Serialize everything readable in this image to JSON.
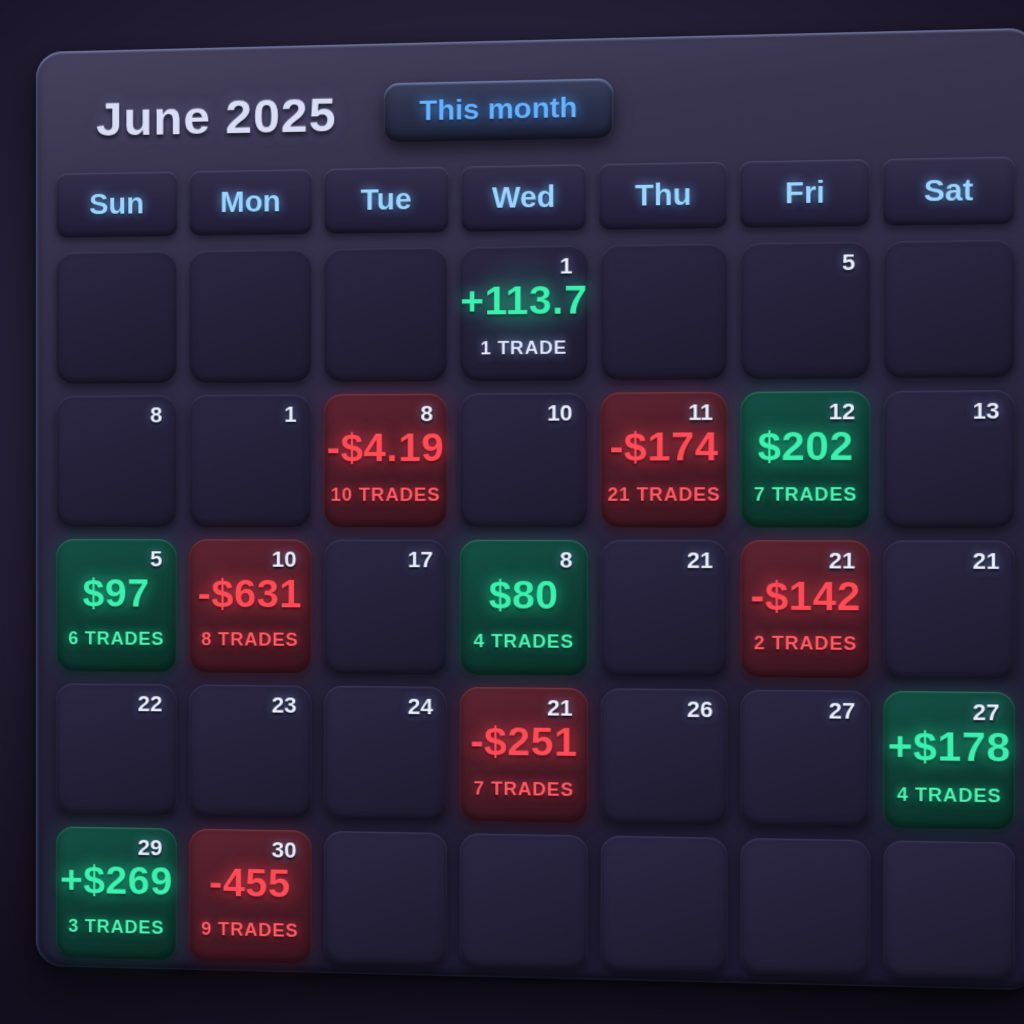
{
  "header": {
    "title": "June 2025",
    "this_month_button": "This month"
  },
  "weekdays": [
    "Sun",
    "Mon",
    "Tue",
    "Wed",
    "Thu",
    "Fri",
    "Sat"
  ],
  "colors": {
    "positive": "#3CF0AF",
    "negative": "#FF4B55",
    "weekday_text": "#9BD4FF",
    "button_text": "#66B2FF",
    "title_text": "#D8DCF6",
    "day_number_text": "#EAEEFF",
    "positive_cell_bg": "#0F3D34",
    "negative_cell_bg": "#4A1C27",
    "cell_bg": "#242038",
    "panel_bg": "#2B2740"
  },
  "weeks": [
    [
      {
        "day": "",
        "value": "",
        "trades": "",
        "tone": ""
      },
      {
        "day": "",
        "value": "",
        "trades": "",
        "tone": ""
      },
      {
        "day": "",
        "value": "",
        "trades": "",
        "tone": ""
      },
      {
        "day": "1",
        "value": "+113.7",
        "trades": "1 TRADE",
        "tone": "positive",
        "soft_bg": true,
        "neutral_trades": true
      },
      {
        "day": "",
        "value": "",
        "trades": "",
        "tone": ""
      },
      {
        "day": "5",
        "value": "",
        "trades": "",
        "tone": ""
      },
      {
        "day": "",
        "value": "",
        "trades": "",
        "tone": ""
      }
    ],
    [
      {
        "day": "8",
        "value": "",
        "trades": "",
        "tone": ""
      },
      {
        "day": "1",
        "value": "",
        "trades": "",
        "tone": ""
      },
      {
        "day": "8",
        "value": "-$4.19",
        "trades": "10 TRADES",
        "tone": "negative"
      },
      {
        "day": "10",
        "value": "",
        "trades": "",
        "tone": ""
      },
      {
        "day": "11",
        "value": "-$174",
        "trades": "21 TRADES",
        "tone": "negative"
      },
      {
        "day": "12",
        "value": "$202",
        "trades": "7 TRADES",
        "tone": "positive"
      },
      {
        "day": "13",
        "value": "",
        "trades": "",
        "tone": ""
      }
    ],
    [
      {
        "day": "5",
        "value": "$97",
        "trades": "6 TRADES",
        "tone": "positive"
      },
      {
        "day": "10",
        "value": "-$631",
        "trades": "8 TRADES",
        "tone": "negative"
      },
      {
        "day": "17",
        "value": "",
        "trades": "",
        "tone": ""
      },
      {
        "day": "8",
        "value": "$80",
        "trades": "4 TRADES",
        "tone": "positive"
      },
      {
        "day": "21",
        "value": "",
        "trades": "",
        "tone": ""
      },
      {
        "day": "21",
        "value": "-$142",
        "trades": "2 TRADES",
        "tone": "negative"
      },
      {
        "day": "21",
        "value": "",
        "trades": "",
        "tone": ""
      }
    ],
    [
      {
        "day": "22",
        "value": "",
        "trades": "",
        "tone": ""
      },
      {
        "day": "23",
        "value": "",
        "trades": "",
        "tone": ""
      },
      {
        "day": "24",
        "value": "",
        "trades": "",
        "tone": ""
      },
      {
        "day": "21",
        "value": "-$251",
        "trades": "7 TRADES",
        "tone": "negative"
      },
      {
        "day": "26",
        "value": "",
        "trades": "",
        "tone": ""
      },
      {
        "day": "27",
        "value": "",
        "trades": "",
        "tone": ""
      },
      {
        "day": "27",
        "value": "+$178",
        "trades": "4 TRADES",
        "tone": "positive"
      }
    ],
    [
      {
        "day": "29",
        "value": "+$269",
        "trades": "3 TRADES",
        "tone": "positive"
      },
      {
        "day": "30",
        "value": "-455",
        "trades": "9 TRADES",
        "tone": "negative"
      },
      {
        "day": "",
        "value": "",
        "trades": "",
        "tone": ""
      },
      {
        "day": "",
        "value": "",
        "trades": "",
        "tone": ""
      },
      {
        "day": "",
        "value": "",
        "trades": "",
        "tone": ""
      },
      {
        "day": "",
        "value": "",
        "trades": "",
        "tone": ""
      },
      {
        "day": "",
        "value": "",
        "trades": "",
        "tone": ""
      }
    ]
  ]
}
